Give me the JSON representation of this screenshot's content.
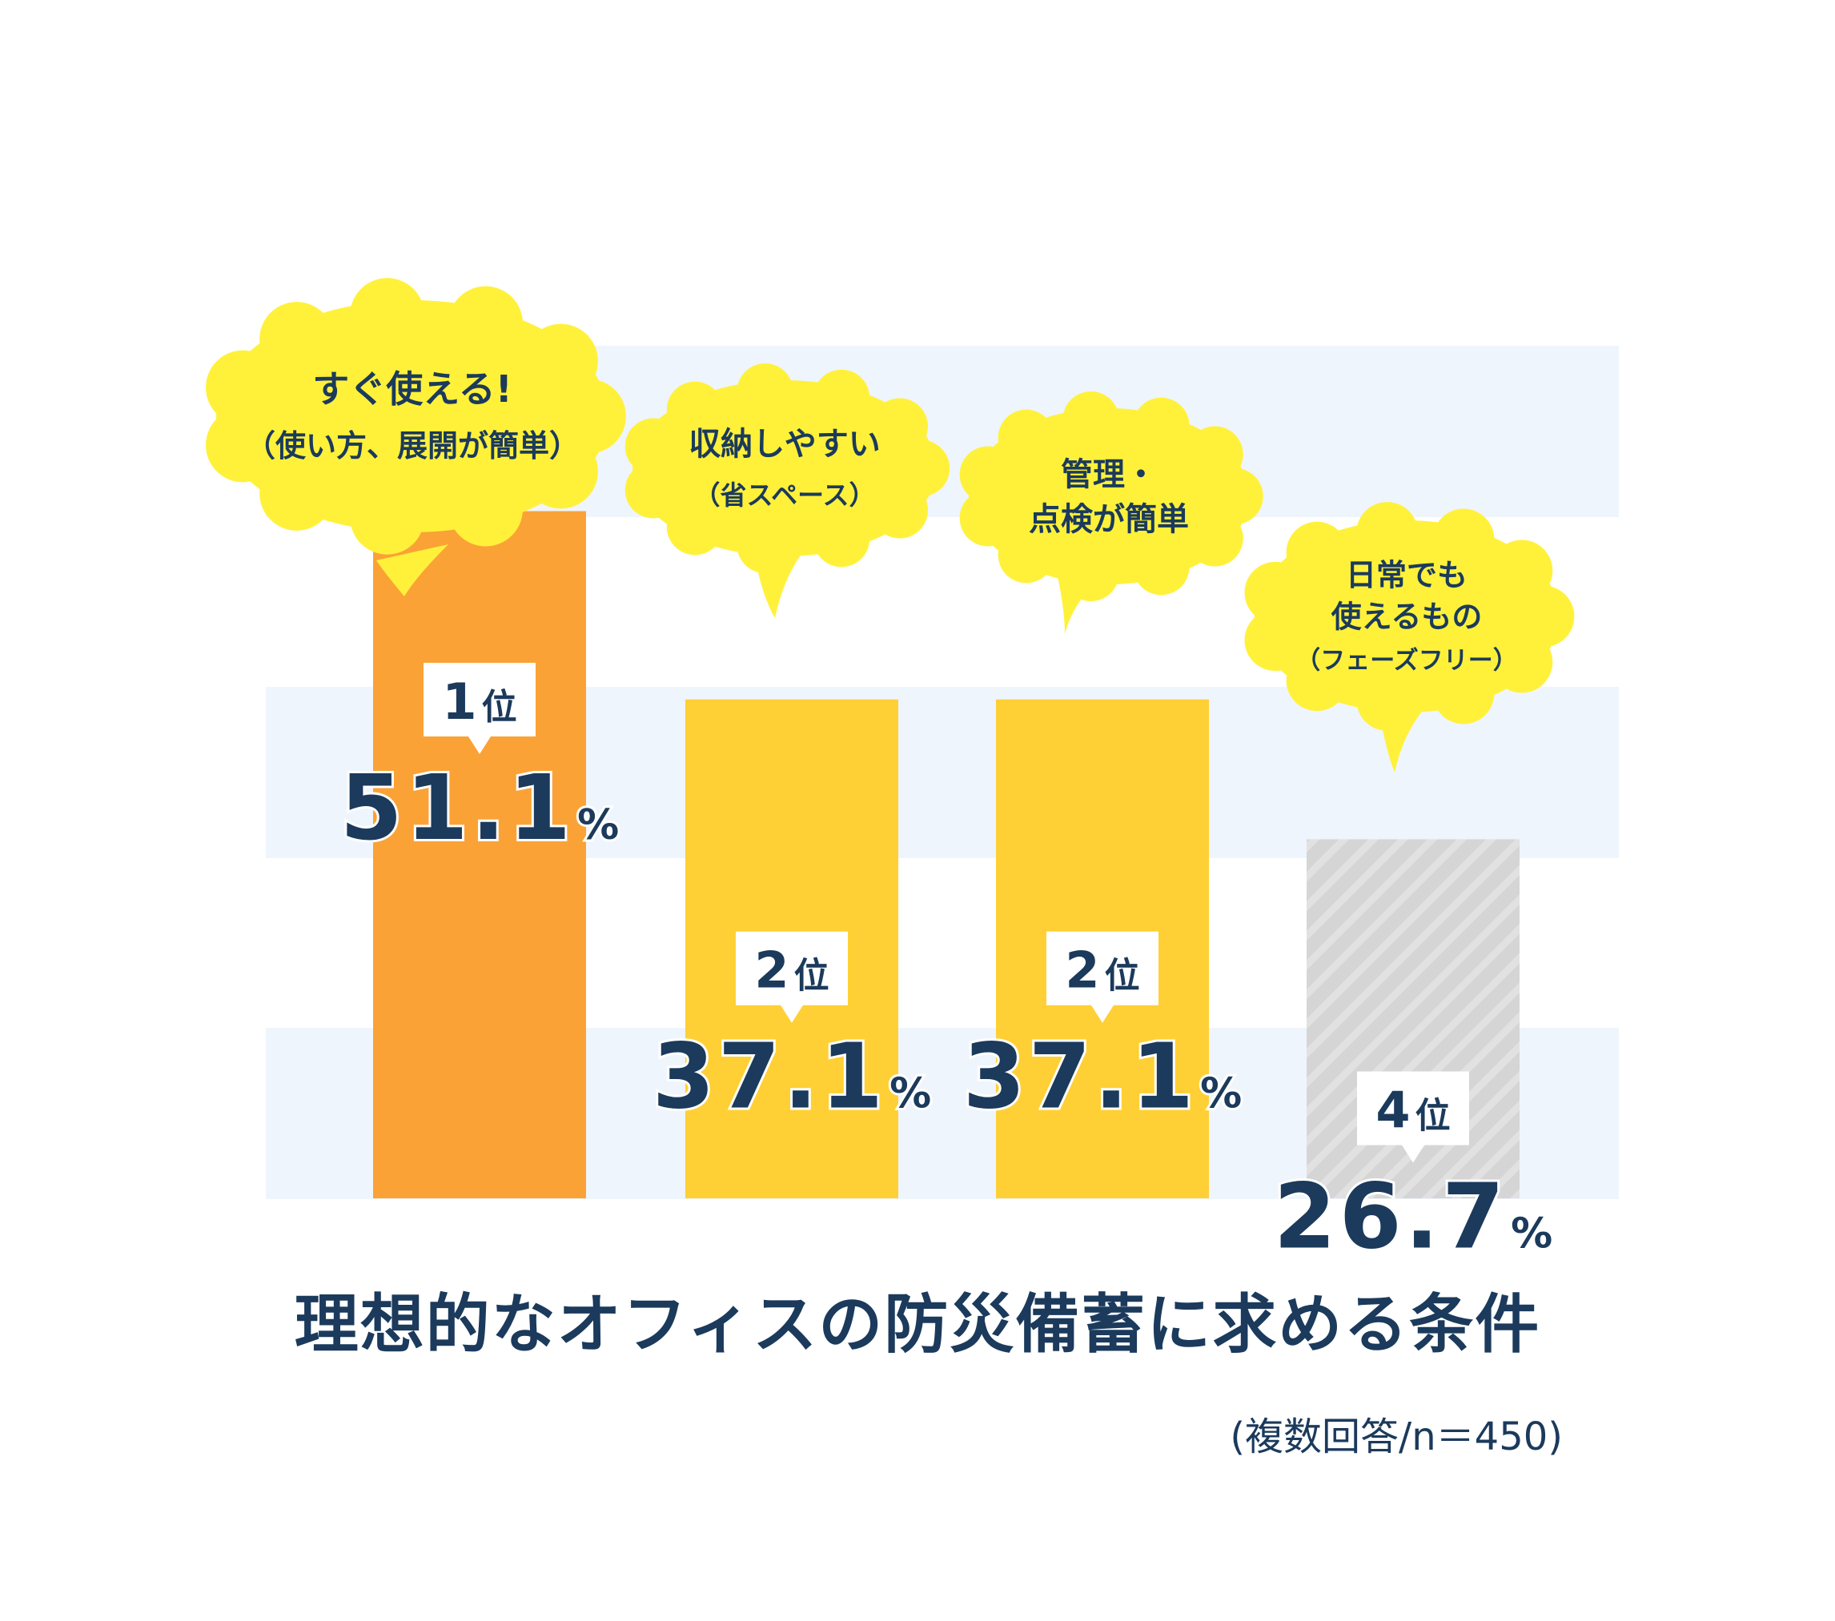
{
  "chart_data": {
    "type": "bar",
    "title": "理想的なオフィスの防災備蓄に求める条件",
    "note": "(複数回答/n＝450)",
    "ylim": [
      0,
      60
    ],
    "grid": "alternating horizontal bands",
    "categories": [
      {
        "bubble": [
          "すぐ使える!",
          "（使い方、展開が簡単）"
        ],
        "rank": "1",
        "rank_suffix": "位",
        "value_text": "51.1",
        "unit": "%"
      },
      {
        "bubble": [
          "収納しやすい",
          "（省スペース）"
        ],
        "rank": "2",
        "rank_suffix": "位",
        "value_text": "37.1",
        "unit": "%"
      },
      {
        "bubble": [
          "管理・",
          "点検が簡単"
        ],
        "rank": "2",
        "rank_suffix": "位",
        "value_text": "37.1",
        "unit": "%"
      },
      {
        "bubble": [
          "日常でも",
          "使えるもの",
          "（フェーズフリー）"
        ],
        "rank": "4",
        "rank_suffix": "位",
        "value_text": "26.7",
        "unit": "%"
      }
    ],
    "values": [
      51.1,
      37.1,
      37.1,
      26.7
    ],
    "colors": {
      "rank1": "#fba236",
      "rank2": "#ffd035",
      "rank4": "#d5d5d5",
      "bubble": "#fff13a",
      "text": "#1b3a5c",
      "band": "#eff5fc"
    }
  }
}
